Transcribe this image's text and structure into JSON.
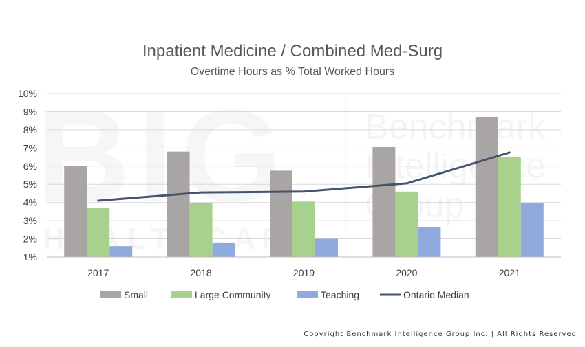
{
  "chart_data": {
    "type": "bar",
    "title": "Inpatient Medicine / Combined Med-Surg",
    "subtitle": "Overtime Hours as % Total Worked Hours",
    "categories": [
      "2017",
      "2018",
      "2019",
      "2020",
      "2021"
    ],
    "y_ticks": [
      "1%",
      "2%",
      "3%",
      "4%",
      "5%",
      "6%",
      "7%",
      "8%",
      "9%",
      "10%"
    ],
    "ylim": [
      1,
      10
    ],
    "y_unit": "%",
    "grid": true,
    "legend_position": "bottom",
    "series": [
      {
        "name": "Small",
        "kind": "bar",
        "color": "#aaa5a5",
        "values": [
          6.0,
          6.8,
          5.75,
          7.05,
          8.7
        ]
      },
      {
        "name": "Large Community",
        "kind": "bar",
        "color": "#a9d18e",
        "values": [
          3.7,
          3.95,
          4.05,
          4.6,
          6.5
        ]
      },
      {
        "name": "Teaching",
        "kind": "bar",
        "color": "#8faadc",
        "values": [
          1.6,
          1.8,
          2.0,
          2.65,
          3.95
        ]
      },
      {
        "name": "Ontario Median",
        "kind": "line",
        "color": "#44546a",
        "values": [
          4.1,
          4.55,
          4.6,
          5.05,
          6.75
        ]
      }
    ]
  },
  "watermark": {
    "big_letters": "BIG",
    "healthcare": "HEALTHCARE",
    "lines": [
      "Benchmark",
      "Intelligence",
      "Group"
    ]
  },
  "copyright": "Copyright Benchmark Intelligence Group Inc. | All Rights Reserved"
}
